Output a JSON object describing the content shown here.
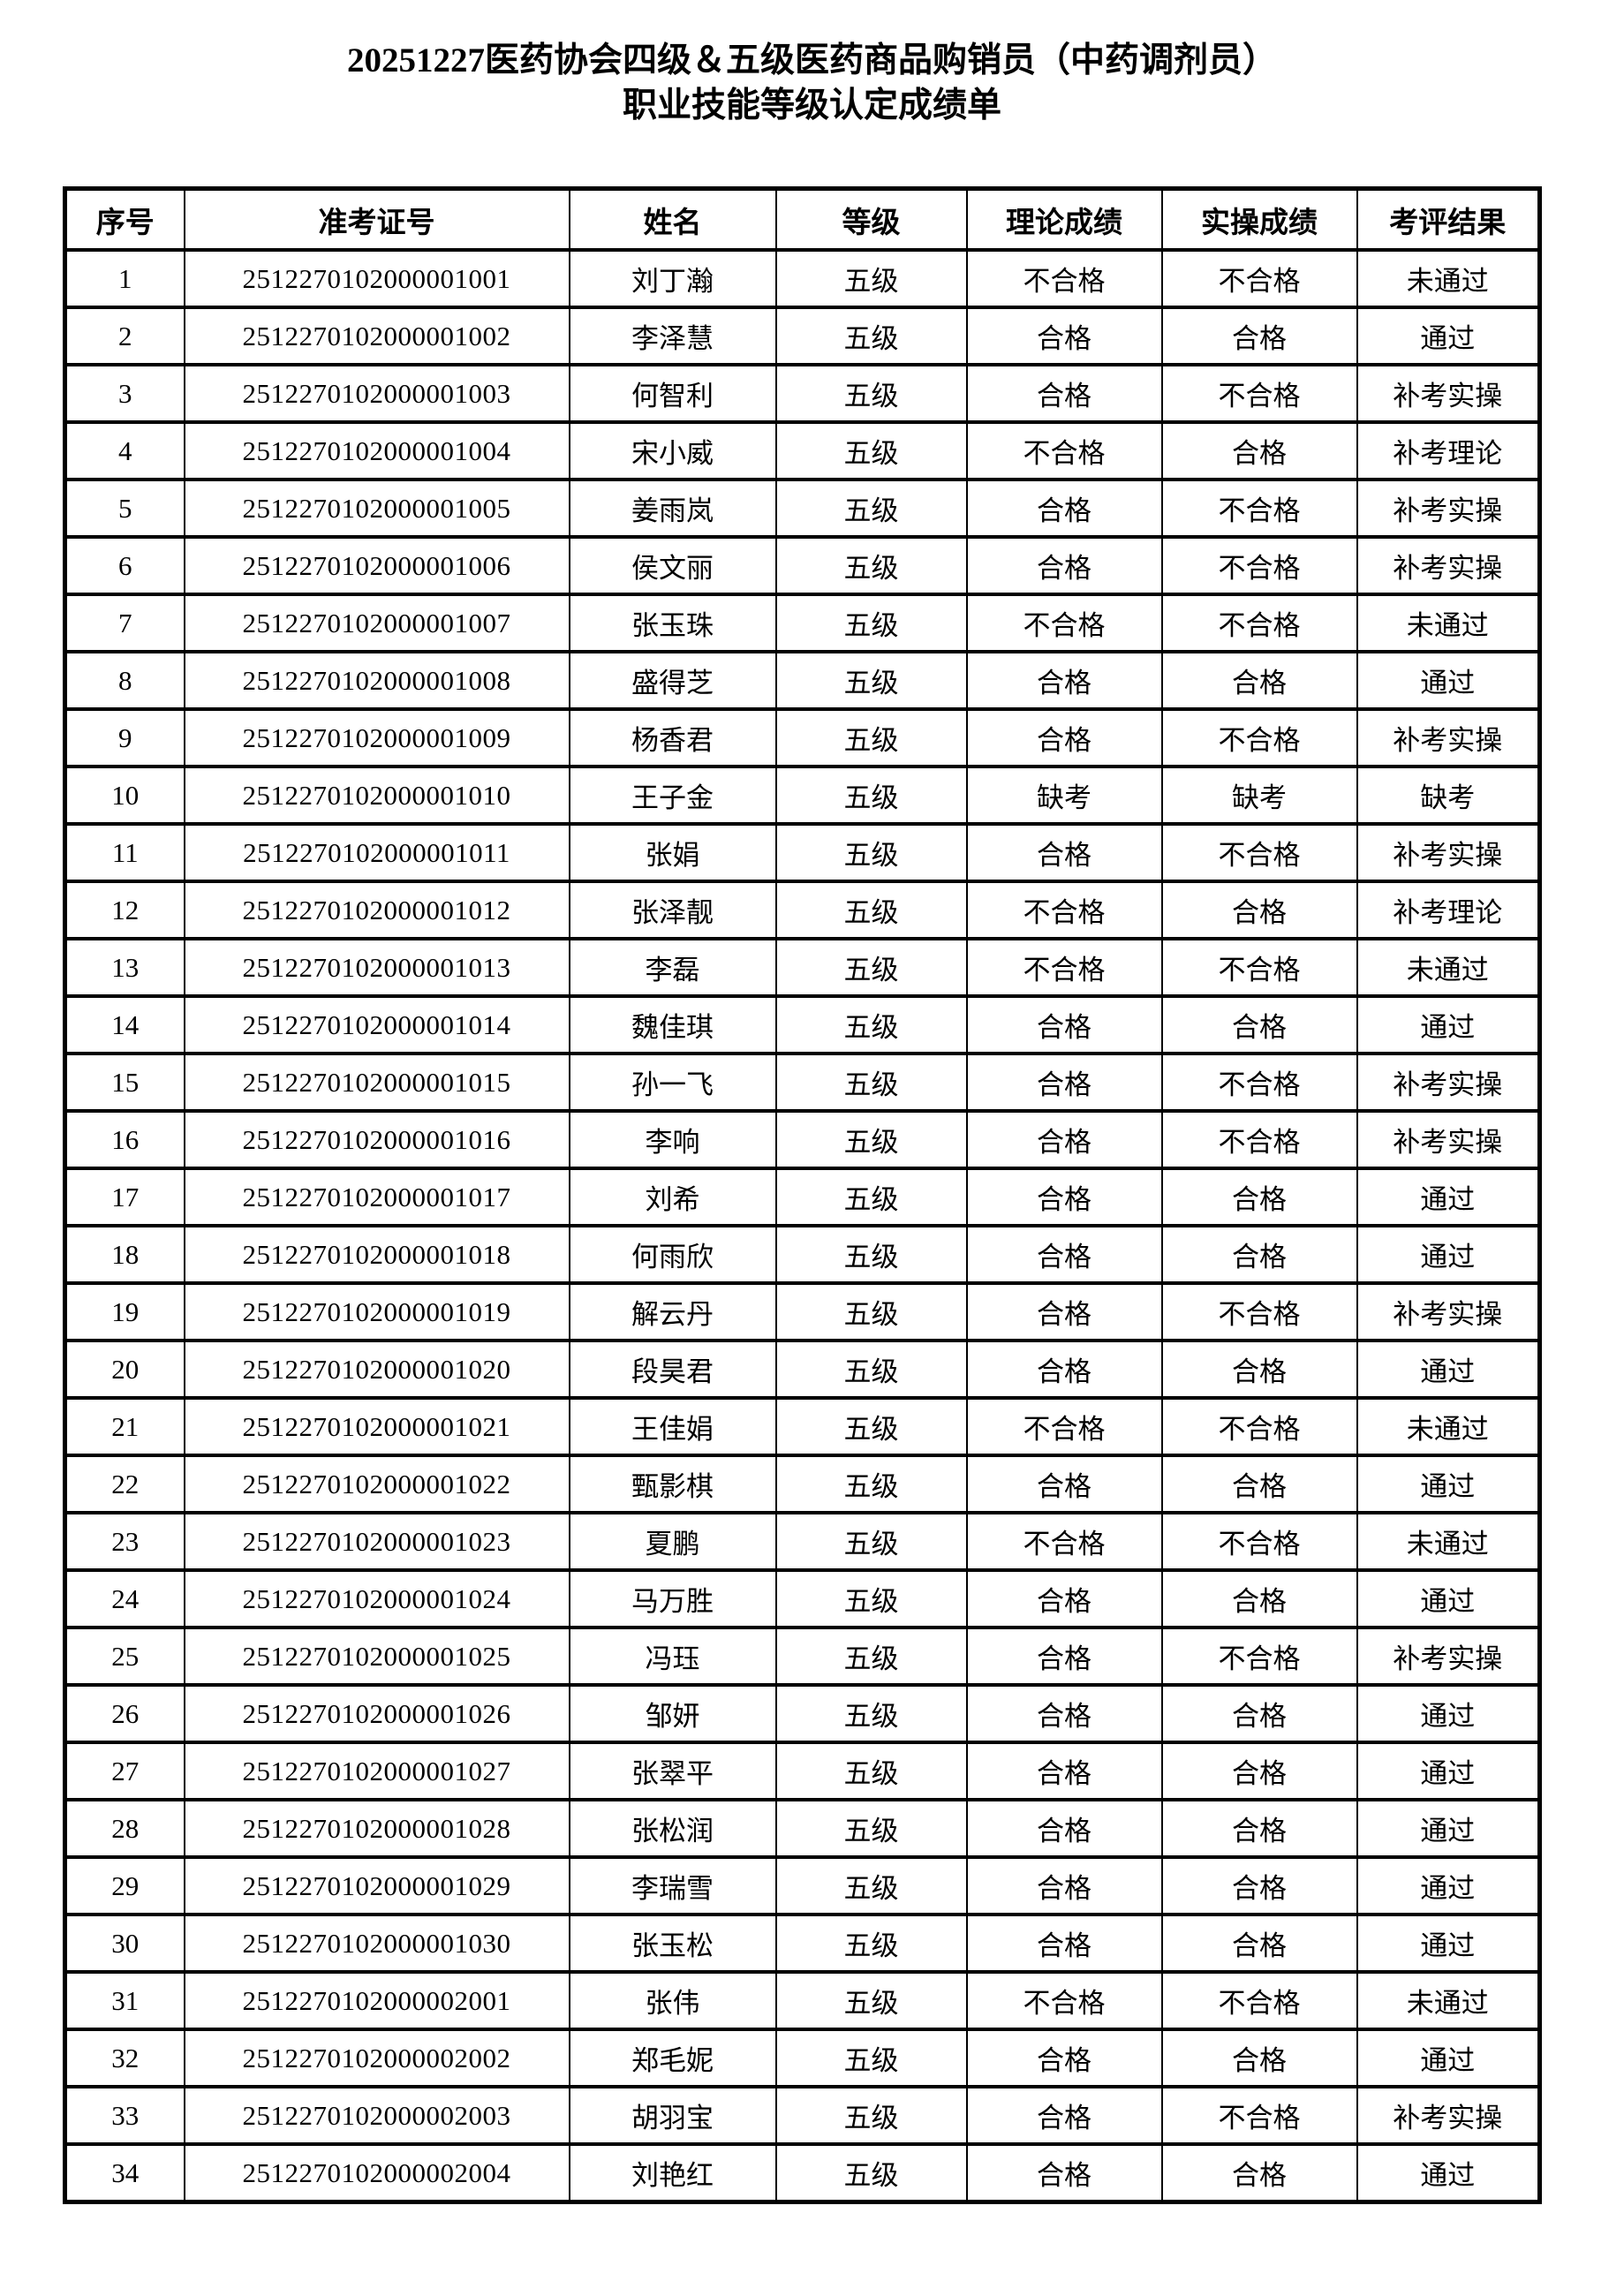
{
  "page": {
    "title_line1": "20251227医药协会四级＆五级医药商品购销员（中药调剂员）",
    "title_line2": "职业技能等级认定成绩单"
  },
  "table": {
    "columns": [
      "序号",
      "准考证号",
      "姓名",
      "等级",
      "理论成绩",
      "实操成绩",
      "考评结果"
    ],
    "rows": [
      [
        "1",
        "2512270102000001001",
        "刘丁瀚",
        "五级",
        "不合格",
        "不合格",
        "未通过"
      ],
      [
        "2",
        "2512270102000001002",
        "李泽慧",
        "五级",
        "合格",
        "合格",
        "通过"
      ],
      [
        "3",
        "2512270102000001003",
        "何智利",
        "五级",
        "合格",
        "不合格",
        "补考实操"
      ],
      [
        "4",
        "2512270102000001004",
        "宋小威",
        "五级",
        "不合格",
        "合格",
        "补考理论"
      ],
      [
        "5",
        "2512270102000001005",
        "姜雨岚",
        "五级",
        "合格",
        "不合格",
        "补考实操"
      ],
      [
        "6",
        "2512270102000001006",
        "侯文丽",
        "五级",
        "合格",
        "不合格",
        "补考实操"
      ],
      [
        "7",
        "2512270102000001007",
        "张玉珠",
        "五级",
        "不合格",
        "不合格",
        "未通过"
      ],
      [
        "8",
        "2512270102000001008",
        "盛得芝",
        "五级",
        "合格",
        "合格",
        "通过"
      ],
      [
        "9",
        "2512270102000001009",
        "杨香君",
        "五级",
        "合格",
        "不合格",
        "补考实操"
      ],
      [
        "10",
        "2512270102000001010",
        "王子金",
        "五级",
        "缺考",
        "缺考",
        "缺考"
      ],
      [
        "11",
        "2512270102000001011",
        "张娟",
        "五级",
        "合格",
        "不合格",
        "补考实操"
      ],
      [
        "12",
        "2512270102000001012",
        "张泽靓",
        "五级",
        "不合格",
        "合格",
        "补考理论"
      ],
      [
        "13",
        "2512270102000001013",
        "李磊",
        "五级",
        "不合格",
        "不合格",
        "未通过"
      ],
      [
        "14",
        "2512270102000001014",
        "魏佳琪",
        "五级",
        "合格",
        "合格",
        "通过"
      ],
      [
        "15",
        "2512270102000001015",
        "孙一飞",
        "五级",
        "合格",
        "不合格",
        "补考实操"
      ],
      [
        "16",
        "2512270102000001016",
        "李响",
        "五级",
        "合格",
        "不合格",
        "补考实操"
      ],
      [
        "17",
        "2512270102000001017",
        "刘希",
        "五级",
        "合格",
        "合格",
        "通过"
      ],
      [
        "18",
        "2512270102000001018",
        "何雨欣",
        "五级",
        "合格",
        "合格",
        "通过"
      ],
      [
        "19",
        "2512270102000001019",
        "解云丹",
        "五级",
        "合格",
        "不合格",
        "补考实操"
      ],
      [
        "20",
        "2512270102000001020",
        "段昊君",
        "五级",
        "合格",
        "合格",
        "通过"
      ],
      [
        "21",
        "2512270102000001021",
        "王佳娟",
        "五级",
        "不合格",
        "不合格",
        "未通过"
      ],
      [
        "22",
        "2512270102000001022",
        "甄影棋",
        "五级",
        "合格",
        "合格",
        "通过"
      ],
      [
        "23",
        "2512270102000001023",
        "夏鹏",
        "五级",
        "不合格",
        "不合格",
        "未通过"
      ],
      [
        "24",
        "2512270102000001024",
        "马万胜",
        "五级",
        "合格",
        "合格",
        "通过"
      ],
      [
        "25",
        "2512270102000001025",
        "冯珏",
        "五级",
        "合格",
        "不合格",
        "补考实操"
      ],
      [
        "26",
        "2512270102000001026",
        "邹妍",
        "五级",
        "合格",
        "合格",
        "通过"
      ],
      [
        "27",
        "2512270102000001027",
        "张翠平",
        "五级",
        "合格",
        "合格",
        "通过"
      ],
      [
        "28",
        "2512270102000001028",
        "张松润",
        "五级",
        "合格",
        "合格",
        "通过"
      ],
      [
        "29",
        "2512270102000001029",
        "李瑞雪",
        "五级",
        "合格",
        "合格",
        "通过"
      ],
      [
        "30",
        "2512270102000001030",
        "张玉松",
        "五级",
        "合格",
        "合格",
        "通过"
      ],
      [
        "31",
        "2512270102000002001",
        "张伟",
        "五级",
        "不合格",
        "不合格",
        "未通过"
      ],
      [
        "32",
        "2512270102000002002",
        "郑毛妮",
        "五级",
        "合格",
        "合格",
        "通过"
      ],
      [
        "33",
        "2512270102000002003",
        "胡羽宝",
        "五级",
        "合格",
        "不合格",
        "补考实操"
      ],
      [
        "34",
        "2512270102000002004",
        "刘艳红",
        "五级",
        "合格",
        "合格",
        "通过"
      ]
    ],
    "cell_names": [
      "cell-index",
      "cell-ticket-number",
      "cell-name",
      "cell-level",
      "cell-theory-score",
      "cell-practical-score",
      "cell-evaluation-result"
    ]
  }
}
